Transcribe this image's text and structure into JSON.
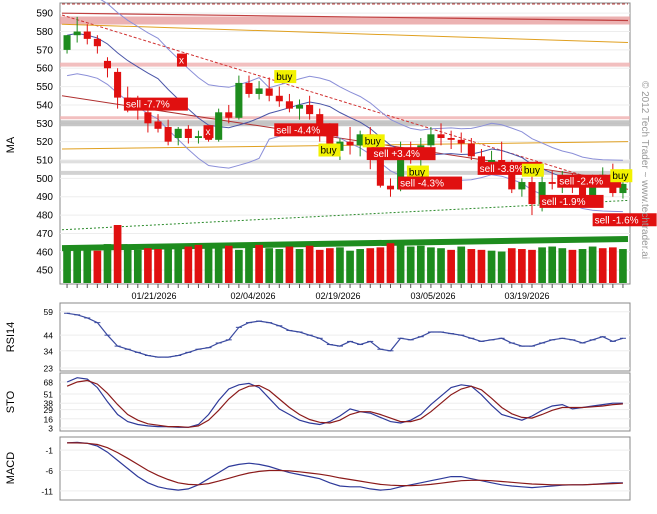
{
  "watermark": "© 2012 Tech Trader ~ www.techtrader.ai",
  "dates": [
    "01/21/2026",
    "02/04/2026",
    "02/19/2026",
    "03/05/2026",
    "03/19/2026"
  ],
  "colors": {
    "up": "#1e8c1e",
    "down": "#e01010",
    "ma": "#4a55a8",
    "resist": "#d58a8a",
    "support": "#b0b0b0",
    "buy": "#f2f200",
    "sell": "#e01010",
    "rsi": "#3a4aa0",
    "sto_k": "#2e3a9a",
    "sto_d": "#8b1a1a"
  },
  "chart_data": [
    {
      "type": "candlestick",
      "ylabel": "MA",
      "ylim": [
        443,
        595
      ],
      "yticks": [
        450,
        460,
        470,
        480,
        490,
        500,
        510,
        520,
        530,
        540,
        550,
        560,
        570,
        580,
        590
      ],
      "x_labels": [
        "01/21/2026",
        "02/04/2026",
        "02/19/2026",
        "03/05/2026",
        "03/19/2026"
      ],
      "ohlc": [
        [
          570,
          578,
          568,
          578
        ],
        [
          578,
          588,
          574,
          580
        ],
        [
          580,
          584,
          573,
          576
        ],
        [
          576,
          578,
          568,
          572
        ],
        [
          564,
          566,
          555,
          560
        ],
        [
          558,
          560,
          538,
          544
        ],
        [
          544,
          550,
          536,
          539
        ],
        [
          540,
          545,
          532,
          537
        ],
        [
          536,
          540,
          525,
          530
        ],
        [
          531,
          535,
          525,
          527
        ],
        [
          528,
          532,
          518,
          520
        ],
        [
          522,
          528,
          518,
          527
        ],
        [
          527,
          529,
          519,
          522
        ],
        [
          522,
          526,
          519,
          523
        ],
        [
          523,
          524,
          520,
          521
        ],
        [
          521,
          538,
          520,
          536
        ],
        [
          536,
          540,
          530,
          533
        ],
        [
          533,
          556,
          532,
          552
        ],
        [
          552,
          556,
          544,
          546
        ],
        [
          546,
          553,
          543,
          549
        ],
        [
          549,
          555,
          542,
          545
        ],
        [
          545,
          550,
          539,
          542
        ],
        [
          542,
          546,
          536,
          538
        ],
        [
          538,
          543,
          532,
          540
        ],
        [
          540,
          545,
          532,
          535
        ],
        [
          535,
          538,
          520,
          527
        ],
        [
          527,
          530,
          512,
          517
        ],
        [
          515,
          522,
          510,
          520
        ],
        [
          520,
          528,
          513,
          518
        ],
        [
          518,
          526,
          512,
          524
        ],
        [
          524,
          528,
          505,
          510
        ],
        [
          510,
          512,
          495,
          496
        ],
        [
          496,
          500,
          490,
          494
        ],
        [
          494,
          520,
          493,
          514
        ],
        [
          514,
          520,
          508,
          512
        ],
        [
          512,
          522,
          507,
          518
        ],
        [
          518,
          528,
          514,
          524
        ],
        [
          524,
          530,
          518,
          522
        ],
        [
          522,
          526,
          516,
          521
        ],
        [
          521,
          525,
          514,
          519
        ],
        [
          519,
          522,
          510,
          512
        ],
        [
          512,
          516,
          505,
          508
        ],
        [
          508,
          515,
          504,
          510
        ],
        [
          510,
          520,
          505,
          506
        ],
        [
          506,
          510,
          492,
          494
        ],
        [
          494,
          500,
          490,
          498
        ],
        [
          498,
          502,
          480,
          486
        ],
        [
          486,
          502,
          482,
          498
        ],
        [
          498,
          504,
          494,
          497
        ],
        [
          497,
          504,
          492,
          500
        ],
        [
          500,
          503,
          492,
          499
        ],
        [
          499,
          502,
          486,
          488
        ],
        [
          488,
          502,
          486,
          500
        ],
        [
          500,
          506,
          497,
          502
        ],
        [
          502,
          508,
          490,
          492
        ],
        [
          492,
          505,
          489,
          497
        ]
      ],
      "volume": [
        43,
        42,
        40,
        39,
        47,
        70,
        41,
        40,
        42,
        41,
        45,
        46,
        44,
        46,
        45,
        43,
        45,
        40,
        43,
        46,
        42,
        41,
        44,
        41,
        45,
        40,
        42,
        43,
        39,
        41,
        42,
        43,
        48,
        46,
        44,
        45,
        43,
        42,
        40,
        44,
        41,
        40,
        39,
        38,
        42,
        41,
        40,
        43,
        44,
        42,
        40,
        41,
        44,
        42,
        43,
        41
      ],
      "volume_up": [
        1,
        1,
        1,
        0,
        1,
        0,
        1,
        1,
        0,
        0,
        1,
        1,
        0,
        0,
        1,
        1,
        0,
        1,
        1,
        0,
        1,
        1,
        0,
        1,
        0,
        0,
        0,
        1,
        1,
        1,
        0,
        0,
        0,
        1,
        1,
        1,
        1,
        1,
        0,
        1,
        0,
        0,
        1,
        1,
        0,
        0,
        0,
        1,
        1,
        1,
        0,
        1,
        1,
        0,
        0,
        1
      ],
      "signals": [
        {
          "text": "x",
          "side": "sell",
          "i": 13,
          "price": 562
        },
        {
          "text": "x",
          "side": "sell",
          "i": 16,
          "price": 523
        },
        {
          "text": "buy",
          "side": "buy",
          "i": 24,
          "price": 553
        },
        {
          "text": "sell -7.7%",
          "side": "sell",
          "i": 7,
          "price": 538
        },
        {
          "text": "sell -4.4%",
          "side": "sell",
          "i": 24,
          "price": 524
        },
        {
          "text": "buy",
          "side": "buy",
          "i": 29,
          "price": 513
        },
        {
          "text": "buy",
          "side": "buy",
          "i": 34,
          "price": 518
        },
        {
          "text": "sell +3.4%",
          "side": "sell",
          "i": 35,
          "price": 511
        },
        {
          "text": "buy",
          "side": "buy",
          "i": 39,
          "price": 501
        },
        {
          "text": "sell -4.3%",
          "side": "sell",
          "i": 38,
          "price": 495
        },
        {
          "text": "sell -3.8%",
          "side": "sell",
          "i": 47,
          "price": 503
        },
        {
          "text": "buy",
          "side": "buy",
          "i": 52,
          "price": 502
        },
        {
          "text": "sell -2.4%",
          "side": "sell",
          "i": 56,
          "price": 496
        },
        {
          "text": "sell -1.9%",
          "side": "sell",
          "i": 54,
          "price": 485
        },
        {
          "text": "buy",
          "side": "buy",
          "i": 62,
          "price": 499
        },
        {
          "text": "sell -1.6%",
          "side": "sell",
          "i": 60,
          "price": 475
        }
      ]
    },
    {
      "type": "line",
      "ylabel": "RSI14",
      "yticks": [
        23,
        34,
        44,
        59
      ],
      "ylim": [
        23,
        62
      ],
      "values": [
        58,
        57,
        55,
        52,
        44,
        37,
        35,
        33,
        31,
        30,
        30,
        31,
        33,
        35,
        36,
        39,
        41,
        49,
        52,
        53,
        52,
        50,
        47,
        46,
        44,
        42,
        38,
        37,
        40,
        38,
        40,
        35,
        34,
        42,
        41,
        43,
        46,
        46,
        45,
        44,
        42,
        40,
        41,
        42,
        39,
        37,
        37,
        39,
        41,
        42,
        41,
        39,
        41,
        43,
        40,
        42
      ]
    },
    {
      "type": "line",
      "ylabel": "STO",
      "yticks": [
        3,
        16,
        29,
        38,
        51,
        68
      ],
      "ylim": [
        3,
        75
      ],
      "series": [
        {
          "values": [
            68,
            74,
            72,
            60,
            40,
            22,
            12,
            8,
            6,
            5,
            5,
            4,
            4,
            8,
            22,
            42,
            58,
            64,
            66,
            60,
            45,
            30,
            22,
            14,
            10,
            8,
            12,
            20,
            30,
            26,
            24,
            18,
            12,
            10,
            14,
            22,
            36,
            48,
            60,
            64,
            62,
            50,
            35,
            22,
            18,
            14,
            20,
            28,
            34,
            36,
            30,
            32,
            34,
            36,
            38,
            38
          ]
        },
        {
          "values": [
            62,
            68,
            70,
            65,
            52,
            36,
            22,
            14,
            9,
            7,
            5,
            5,
            4,
            6,
            14,
            28,
            44,
            56,
            62,
            63,
            56,
            44,
            32,
            22,
            15,
            11,
            10,
            14,
            22,
            26,
            26,
            22,
            17,
            12,
            12,
            16,
            26,
            38,
            50,
            58,
            62,
            57,
            45,
            32,
            23,
            18,
            17,
            22,
            28,
            32,
            32,
            32,
            33,
            34,
            36,
            37
          ]
        }
      ]
    },
    {
      "type": "line",
      "ylabel": "MACD",
      "yticks": [
        -1,
        -6,
        -11
      ],
      "ylim": [
        -12.5,
        1.5
      ],
      "series": [
        {
          "values": [
            0.8,
            0.9,
            0.7,
            0,
            -1.5,
            -3.5,
            -5.5,
            -7.5,
            -9,
            -10,
            -10.5,
            -10.8,
            -10.5,
            -9.5,
            -8,
            -6.5,
            -5,
            -4.5,
            -4.2,
            -4.5,
            -5,
            -5.8,
            -6.5,
            -7,
            -7.5,
            -8,
            -9,
            -9.8,
            -10,
            -10,
            -10.5,
            -10.8,
            -10.6,
            -10,
            -9.5,
            -9,
            -8.5,
            -8,
            -7.5,
            -7.5,
            -8,
            -8.5,
            -9,
            -9.5,
            -9.8,
            -10,
            -10.2,
            -10,
            -9.8,
            -9.6,
            -9.5,
            -9.5,
            -9.4,
            -9.2,
            -9,
            -9
          ]
        },
        {
          "values": [
            0.8,
            0.8,
            0.7,
            0.4,
            -0.4,
            -1.6,
            -3,
            -4.5,
            -6,
            -7.2,
            -8.2,
            -9,
            -9.4,
            -9.5,
            -9.2,
            -8.6,
            -7.9,
            -7.2,
            -6.6,
            -6.2,
            -6,
            -6,
            -6.1,
            -6.3,
            -6.6,
            -6.9,
            -7.3,
            -7.8,
            -8.2,
            -8.6,
            -9,
            -9.4,
            -9.6,
            -9.7,
            -9.7,
            -9.6,
            -9.4,
            -9.1,
            -8.8,
            -8.5,
            -8.4,
            -8.4,
            -8.5,
            -8.7,
            -8.9,
            -9.1,
            -9.3,
            -9.4,
            -9.5,
            -9.5,
            -9.5,
            -9.5,
            -9.4,
            -9.3,
            -9.2,
            -9.1
          ]
        }
      ]
    }
  ]
}
